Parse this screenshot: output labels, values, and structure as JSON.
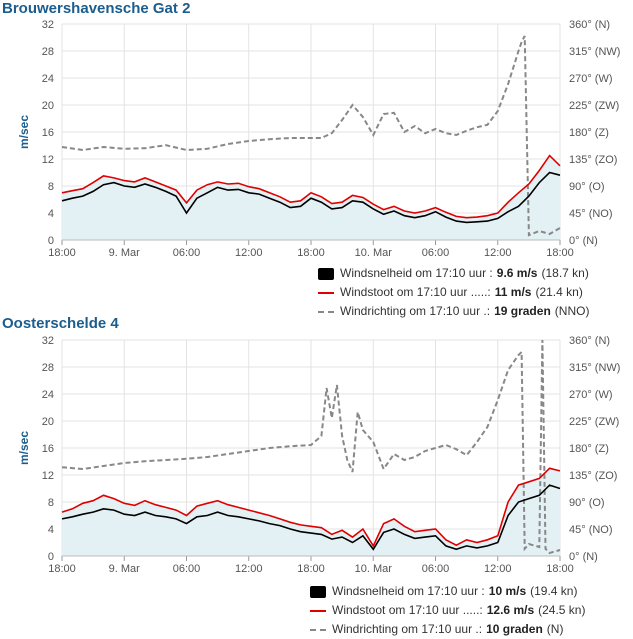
{
  "units_label": "m/sec",
  "colors": {
    "fill": "#e4f1f4",
    "speed": "#000000",
    "gust": "#e00000",
    "direction": "#888888",
    "title": "#1b5d8e",
    "grid": "#e3e3e3"
  },
  "x_ticks": [
    "18:00",
    "9. Mar",
    "06:00",
    "12:00",
    "18:00",
    "10. Mar",
    "06:00",
    "12:00",
    "18:00"
  ],
  "y_ticks": [
    "0",
    "4",
    "8",
    "12",
    "16",
    "20",
    "24",
    "28",
    "32"
  ],
  "dir_ticks": [
    "0° (N)",
    "45° (NO)",
    "90° (O)",
    "135° (ZO)",
    "180° (Z)",
    "225° (ZW)",
    "270° (W)",
    "315° (NW)",
    "360° (N)"
  ],
  "chart_data": [
    {
      "type": "line",
      "title": "Brouwershavensche Gat 2",
      "ylabel": "m/sec",
      "ylim": [
        0,
        32
      ],
      "y2lim": [
        0,
        360
      ],
      "x_range_hours": [
        0,
        48
      ],
      "series": [
        {
          "name": "Windsnelheid",
          "axis": "left",
          "x": [
            0,
            1,
            2,
            3,
            4,
            5,
            6,
            7,
            8,
            9,
            10,
            11,
            12,
            13,
            14,
            15,
            16,
            17,
            18,
            19,
            20,
            21,
            22,
            23,
            24,
            25,
            26,
            27,
            28,
            29,
            30,
            31,
            32,
            33,
            34,
            35,
            36,
            37,
            38,
            39,
            40,
            41,
            42,
            43,
            44,
            45,
            46,
            47,
            48
          ],
          "values": [
            5.8,
            6.2,
            6.5,
            7.2,
            8.2,
            8.5,
            8.0,
            7.8,
            8.3,
            7.8,
            7.2,
            6.5,
            4.0,
            6.2,
            7.0,
            7.8,
            7.4,
            7.5,
            7.0,
            6.8,
            6.2,
            5.6,
            4.8,
            5.0,
            6.2,
            5.6,
            4.6,
            4.8,
            5.8,
            5.6,
            4.6,
            3.8,
            4.3,
            3.6,
            3.3,
            3.6,
            4.2,
            3.4,
            2.8,
            2.6,
            2.7,
            2.8,
            3.2,
            4.2,
            5.0,
            6.5,
            8.5,
            10.0,
            9.6
          ]
        },
        {
          "name": "Windstoot",
          "axis": "left",
          "x": [
            0,
            1,
            2,
            3,
            4,
            5,
            6,
            7,
            8,
            9,
            10,
            11,
            12,
            13,
            14,
            15,
            16,
            17,
            18,
            19,
            20,
            21,
            22,
            23,
            24,
            25,
            26,
            27,
            28,
            29,
            30,
            31,
            32,
            33,
            34,
            35,
            36,
            37,
            38,
            39,
            40,
            41,
            42,
            43,
            44,
            45,
            46,
            47,
            48
          ],
          "values": [
            7.0,
            7.3,
            7.6,
            8.5,
            9.5,
            9.2,
            8.8,
            8.6,
            9.2,
            8.6,
            8.0,
            7.4,
            5.5,
            7.4,
            8.2,
            8.6,
            8.3,
            8.4,
            7.9,
            7.6,
            7.0,
            6.4,
            5.6,
            5.8,
            7.0,
            6.4,
            5.4,
            5.6,
            6.6,
            6.3,
            5.3,
            4.5,
            5.0,
            4.3,
            4.0,
            4.3,
            4.8,
            4.1,
            3.5,
            3.3,
            3.4,
            3.6,
            4.0,
            5.6,
            7.0,
            8.3,
            10.3,
            12.5,
            11.0
          ]
        },
        {
          "name": "Windrichting",
          "axis": "right",
          "x": [
            0,
            2,
            4,
            6,
            8,
            10,
            12,
            14,
            16,
            18,
            20,
            22,
            24,
            25,
            26,
            27,
            28,
            29,
            30,
            31,
            32,
            33,
            34,
            35,
            36,
            37,
            38,
            39,
            40,
            41,
            42,
            43,
            44,
            44.3,
            44.6,
            45,
            46,
            47,
            48
          ],
          "values": [
            155,
            150,
            155,
            152,
            153,
            158,
            150,
            152,
            160,
            165,
            168,
            170,
            170,
            170,
            178,
            200,
            225,
            205,
            175,
            210,
            212,
            180,
            190,
            178,
            185,
            178,
            175,
            182,
            188,
            192,
            215,
            260,
            315,
            330,
            340,
            8,
            15,
            10,
            20
          ]
        }
      ]
    },
    {
      "type": "line",
      "title": "Oosterschelde 4",
      "ylabel": "m/sec",
      "ylim": [
        0,
        32
      ],
      "y2lim": [
        0,
        360
      ],
      "x_range_hours": [
        0,
        48
      ],
      "series": [
        {
          "name": "Windsnelheid",
          "axis": "left",
          "x": [
            0,
            1,
            2,
            3,
            4,
            5,
            6,
            7,
            8,
            9,
            10,
            11,
            12,
            13,
            14,
            15,
            16,
            17,
            18,
            19,
            20,
            21,
            22,
            23,
            24,
            25,
            26,
            27,
            28,
            29,
            30,
            31,
            32,
            33,
            34,
            35,
            36,
            37,
            38,
            39,
            40,
            41,
            42,
            43,
            44,
            45,
            46,
            47,
            48
          ],
          "values": [
            5.5,
            5.8,
            6.2,
            6.5,
            7.0,
            6.8,
            6.2,
            6.0,
            6.5,
            6.0,
            5.8,
            5.5,
            4.8,
            5.8,
            6.0,
            6.5,
            6.0,
            5.8,
            5.5,
            5.2,
            4.8,
            4.5,
            4.0,
            3.6,
            3.4,
            3.2,
            2.5,
            2.8,
            2.0,
            3.0,
            1.0,
            3.5,
            4.0,
            3.2,
            2.6,
            2.8,
            3.0,
            1.5,
            1.0,
            1.5,
            1.2,
            1.5,
            2.0,
            6.0,
            8.0,
            8.5,
            9.0,
            10.5,
            10.0
          ]
        },
        {
          "name": "Windstoot",
          "axis": "left",
          "x": [
            0,
            1,
            2,
            3,
            4,
            5,
            6,
            7,
            8,
            9,
            10,
            11,
            12,
            13,
            14,
            15,
            16,
            17,
            18,
            19,
            20,
            21,
            22,
            23,
            24,
            25,
            26,
            27,
            28,
            29,
            30,
            31,
            32,
            33,
            34,
            35,
            36,
            37,
            38,
            39,
            40,
            41,
            42,
            43,
            44,
            45,
            46,
            47,
            48
          ],
          "values": [
            6.5,
            7.0,
            7.8,
            8.2,
            9.0,
            8.5,
            7.8,
            7.5,
            8.2,
            7.6,
            7.2,
            6.8,
            6.0,
            7.4,
            7.8,
            8.2,
            7.6,
            7.2,
            6.8,
            6.4,
            6.0,
            5.5,
            5.0,
            4.6,
            4.4,
            4.2,
            3.2,
            3.8,
            2.8,
            4.0,
            1.5,
            4.8,
            5.5,
            4.4,
            3.6,
            3.8,
            4.0,
            2.4,
            1.6,
            2.4,
            2.0,
            2.4,
            3.0,
            8.0,
            10.5,
            11.0,
            11.5,
            13.0,
            12.6
          ]
        },
        {
          "name": "Windrichting",
          "axis": "right",
          "x": [
            0,
            2,
            4,
            6,
            8,
            10,
            12,
            14,
            16,
            18,
            20,
            22,
            24,
            25,
            25.5,
            26,
            26.5,
            27,
            27.5,
            28,
            28.5,
            29,
            30,
            31,
            32,
            33,
            34,
            35,
            36,
            37,
            38,
            39,
            40,
            41,
            42,
            43,
            44,
            44.3,
            44.6,
            45,
            46,
            46.3,
            46.6,
            47,
            48
          ],
          "values": [
            148,
            145,
            150,
            155,
            158,
            160,
            162,
            165,
            170,
            175,
            180,
            183,
            185,
            200,
            280,
            230,
            285,
            200,
            160,
            140,
            240,
            210,
            190,
            145,
            170,
            160,
            165,
            175,
            180,
            185,
            178,
            168,
            190,
            215,
            260,
            310,
            335,
            340,
            12,
            20,
            15,
            360,
            12,
            5,
            10
          ]
        }
      ]
    }
  ],
  "panels": [
    {
      "title": "Brouwershavensche Gat 2",
      "legend": [
        {
          "label": "Windsnelheid om 17:10 uur :",
          "value": "9.6 m/s",
          "extra": "(18.7 kn)"
        },
        {
          "label": "Windstoot om 17:10 uur .....:",
          "value": "11 m/s",
          "extra": "(21.4 kn)"
        },
        {
          "label": "Windrichting om 17:10 uur .:",
          "value": "19 graden",
          "extra": "(NNO)"
        }
      ]
    },
    {
      "title": "Oosterschelde 4",
      "legend": [
        {
          "label": "Windsnelheid om 17:10 uur :",
          "value": "10 m/s",
          "extra": "(19.4 kn)"
        },
        {
          "label": "Windstoot om 17:10 uur .....:",
          "value": "12.6 m/s",
          "extra": "(24.5 kn)"
        },
        {
          "label": "Windrichting om 17:10 uur .:",
          "value": "10 graden",
          "extra": "(N)"
        }
      ]
    }
  ]
}
